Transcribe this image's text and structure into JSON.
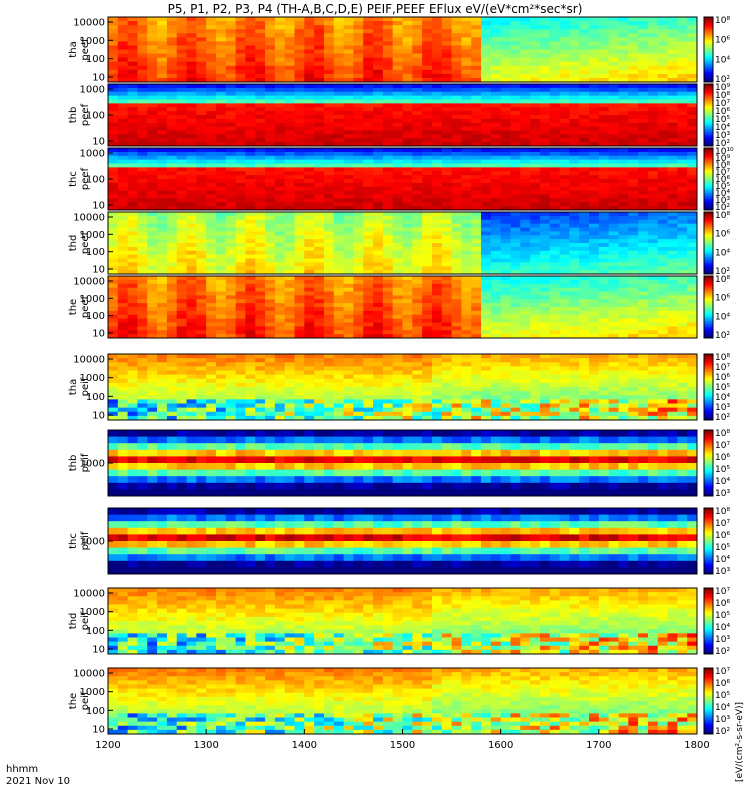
{
  "title": "P5, P1, P2, P3, P4 (TH-A,B,C,D,E) PEIF,PEEF EFlux eV/(eV*cm²*sec*sr)",
  "footer": {
    "label": "hhmm",
    "date": "2021 Nov 10"
  },
  "colorbar_unit": "[eV/(cm²-s-sr-eV)]",
  "chart_data": {
    "type": "heatmap",
    "x": {
      "ticks": [
        1200,
        1300,
        1400,
        1500,
        1600,
        1700,
        1800
      ],
      "range": [
        1200,
        1800
      ]
    },
    "panels": [
      {
        "name": "tha peef",
        "line1": "tha",
        "line2": "peef",
        "yticks": [
          "10",
          "100",
          "1000",
          "10000"
        ],
        "cbticks": [
          "10²",
          "10⁴",
          "10⁶",
          "10⁸"
        ],
        "style": "peef"
      },
      {
        "name": "thb peef",
        "line1": "thb",
        "line2": "peef",
        "yticks": [
          "10",
          "100",
          "1000"
        ],
        "cbticks": [
          "10²",
          "10³",
          "10⁴",
          "10⁵",
          "10⁶",
          "10⁷",
          "10⁸",
          "10⁹"
        ],
        "style": "cold"
      },
      {
        "name": "thc peef",
        "line1": "thc",
        "line2": "peef",
        "yticks": [
          "10",
          "100",
          "1000"
        ],
        "cbticks": [
          "10²",
          "10³",
          "10⁴",
          "10⁵",
          "10⁶",
          "10⁷",
          "10⁸",
          "10⁹",
          "10¹⁰"
        ],
        "style": "cold"
      },
      {
        "name": "thd peef",
        "line1": "thd",
        "line2": "peef",
        "yticks": [
          "10",
          "100",
          "1000",
          "10000"
        ],
        "cbticks": [
          "10²",
          "10⁴",
          "10⁶",
          "10⁸"
        ],
        "style": "peef_mild"
      },
      {
        "name": "the peef",
        "line1": "the",
        "line2": "peef",
        "yticks": [
          "10",
          "100",
          "1000",
          "10000"
        ],
        "cbticks": [
          "10²",
          "10⁴",
          "10⁶",
          "10⁸"
        ],
        "style": "peef"
      },
      {
        "name": "tha peif",
        "line1": "tha",
        "line2": "peif",
        "yticks": [
          "10",
          "100",
          "1000",
          "10000"
        ],
        "cbticks": [
          "10²",
          "10³",
          "10⁴",
          "10⁵",
          "10⁶",
          "10⁷",
          "10⁸"
        ],
        "style": "peif"
      },
      {
        "name": "thb peif",
        "line1": "thb",
        "line2": "peif",
        "yticks": [
          "1000"
        ],
        "cbticks": [
          "10³",
          "10⁴",
          "10⁵",
          "10⁶",
          "10⁷",
          "10⁸"
        ],
        "style": "bands"
      },
      {
        "name": "thc peif",
        "line1": "thc",
        "line2": "peif",
        "yticks": [
          "1000"
        ],
        "cbticks": [
          "10³",
          "10⁴",
          "10⁵",
          "10⁶",
          "10⁷",
          "10⁸"
        ],
        "style": "bands"
      },
      {
        "name": "thd peif",
        "line1": "thd",
        "line2": "peif",
        "yticks": [
          "10",
          "100",
          "1000",
          "10000"
        ],
        "cbticks": [
          "10²",
          "10³",
          "10⁴",
          "10⁵",
          "10⁶",
          "10⁷"
        ],
        "style": "peif"
      },
      {
        "name": "the peif",
        "line1": "the",
        "line2": "peif",
        "yticks": [
          "10",
          "100",
          "1000",
          "10000"
        ],
        "cbticks": [
          "10²",
          "10³",
          "10⁴",
          "10⁵",
          "10⁶",
          "10⁷"
        ],
        "style": "peif"
      }
    ]
  }
}
